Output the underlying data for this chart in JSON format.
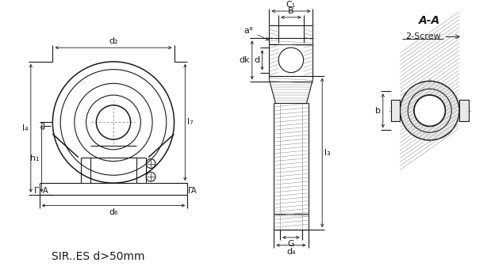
{
  "title": "SIR..ES d>50mm",
  "bg_color": "#ffffff",
  "line_color": "#1a1a1a",
  "title_fontsize": 10,
  "label_fontsize": 8,
  "labels": {
    "d2": "d₂",
    "d6": "d₆",
    "d4": "d₄",
    "l4": "l₄",
    "l7": "l₇",
    "l3": "l₃",
    "h1": "h₁",
    "C1": "C₁",
    "dk": "dk",
    "d": "d",
    "B": "B",
    "G": "G",
    "b": "b",
    "a": "a°",
    "AA": "A-A",
    "screw": "2-Screw"
  }
}
